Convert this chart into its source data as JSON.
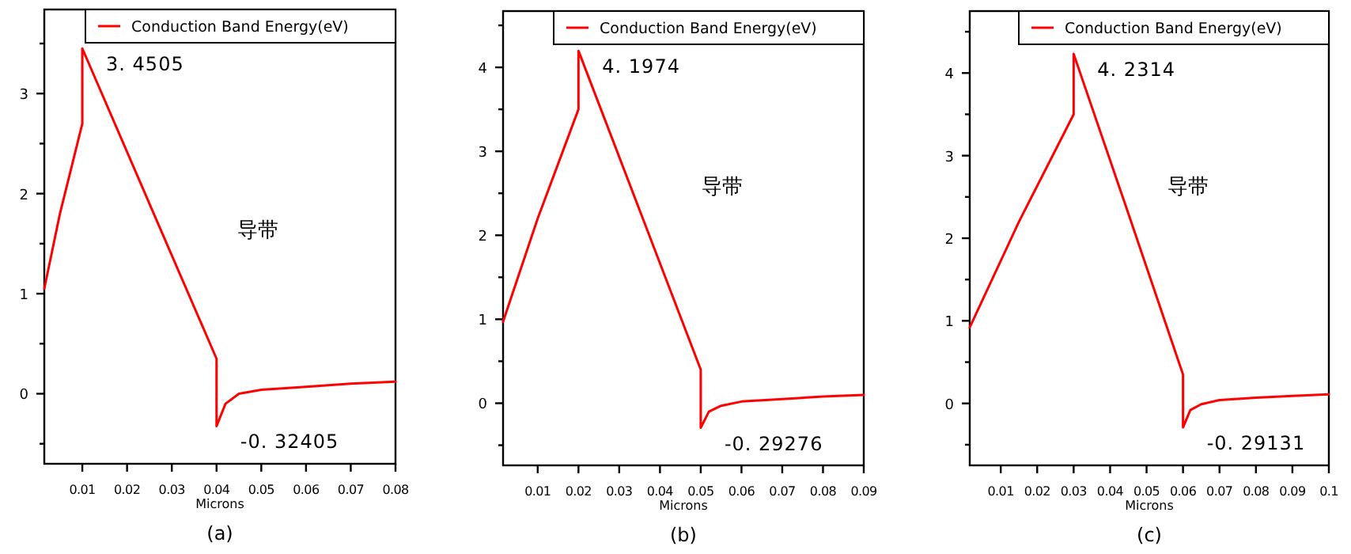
{
  "chart_data": [
    {
      "type": "line",
      "xlabel": "Microns",
      "legend": "top right",
      "xlim": [
        0.0015,
        0.08
      ],
      "ylim": [
        -0.7,
        3.84
      ],
      "xticks": [
        0.01,
        0.02,
        0.03,
        0.04,
        0.05,
        0.06,
        0.07,
        0.08
      ],
      "yticks": [
        {
          "value": -0.5,
          "label": null
        },
        0,
        {
          "value": 0.5,
          "label": null
        },
        1,
        {
          "value": 1.5,
          "label": null
        },
        2,
        {
          "value": 2.5,
          "label": null
        },
        3,
        {
          "value": 3.5,
          "label": null
        }
      ],
      "x": [
        0.0015,
        0.005,
        0.01,
        0.01,
        0.025,
        0.04,
        0.04,
        0.042,
        0.045,
        0.05,
        0.06,
        0.07,
        0.08
      ],
      "series": [
        {
          "name": "Conduction Band Energy(eV)",
          "color": "#ff0000",
          "values": [
            1.05,
            1.8,
            2.7,
            3.4505,
            1.9,
            0.35,
            -0.32405,
            -0.1,
            0.0,
            0.04,
            0.07,
            0.1,
            0.12
          ]
        }
      ],
      "annotations": [
        {
          "text": "3. 4505",
          "x": 0.01,
          "y": 3.4505
        },
        {
          "text": "-0. 32405",
          "x": 0.04,
          "y": -0.32405
        },
        "导带",
        "(a)"
      ]
    },
    {
      "type": "line",
      "xlabel": "Microns",
      "legend": "top right",
      "xlim": [
        0.0015,
        0.09
      ],
      "ylim": [
        -0.74,
        4.67
      ],
      "xticks": [
        0.01,
        0.02,
        0.03,
        0.04,
        0.05,
        0.06,
        0.07,
        0.08,
        0.09
      ],
      "yticks": [
        {
          "value": -0.5,
          "label": null
        },
        0,
        {
          "value": 0.5,
          "label": null
        },
        1,
        {
          "value": 1.5,
          "label": null
        },
        2,
        {
          "value": 2.5,
          "label": null
        },
        3,
        {
          "value": 3.5,
          "label": null
        },
        4,
        {
          "value": 4.5,
          "label": null
        }
      ],
      "x": [
        0.0015,
        0.01,
        0.02,
        0.02,
        0.035,
        0.05,
        0.05,
        0.052,
        0.055,
        0.06,
        0.07,
        0.08,
        0.09
      ],
      "series": [
        {
          "name": "Conduction Band Energy(eV)",
          "color": "#ff0000",
          "values": [
            0.97,
            2.2,
            3.5,
            4.1974,
            2.3,
            0.4,
            -0.29276,
            -0.1,
            -0.03,
            0.02,
            0.05,
            0.08,
            0.1
          ]
        }
      ],
      "annotations": [
        {
          "text": "4. 1974",
          "x": 0.02,
          "y": 4.1974
        },
        {
          "text": "-0. 29276",
          "x": 0.05,
          "y": -0.29276
        },
        "导带",
        "(b)"
      ]
    },
    {
      "type": "line",
      "xlabel": "Microns",
      "legend": "top right",
      "xlim": [
        0.0015,
        0.1
      ],
      "ylim": [
        -0.75,
        4.75
      ],
      "xticks": [
        0.01,
        0.02,
        0.03,
        0.04,
        0.05,
        0.06,
        0.07,
        0.08,
        0.09,
        0.1
      ],
      "yticks": [
        {
          "value": -0.5,
          "label": null
        },
        0,
        {
          "value": 0.5,
          "label": null
        },
        1,
        {
          "value": 1.5,
          "label": null
        },
        2,
        {
          "value": 2.5,
          "label": null
        },
        3,
        {
          "value": 3.5,
          "label": null
        },
        4,
        {
          "value": 4.5,
          "label": null
        }
      ],
      "x": [
        0.0015,
        0.015,
        0.03,
        0.03,
        0.045,
        0.06,
        0.06,
        0.062,
        0.065,
        0.07,
        0.08,
        0.09,
        0.1
      ],
      "series": [
        {
          "name": "Conduction Band Energy(eV)",
          "color": "#ff0000",
          "values": [
            0.92,
            2.2,
            3.5,
            4.2314,
            2.3,
            0.35,
            -0.29131,
            -0.08,
            -0.01,
            0.04,
            0.07,
            0.09,
            0.11
          ]
        }
      ],
      "annotations": [
        {
          "text": "4. 2314",
          "x": 0.03,
          "y": 4.2314
        },
        {
          "text": "-0. 29131",
          "x": 0.06,
          "y": -0.29131
        },
        "导带",
        "(c)"
      ]
    }
  ]
}
